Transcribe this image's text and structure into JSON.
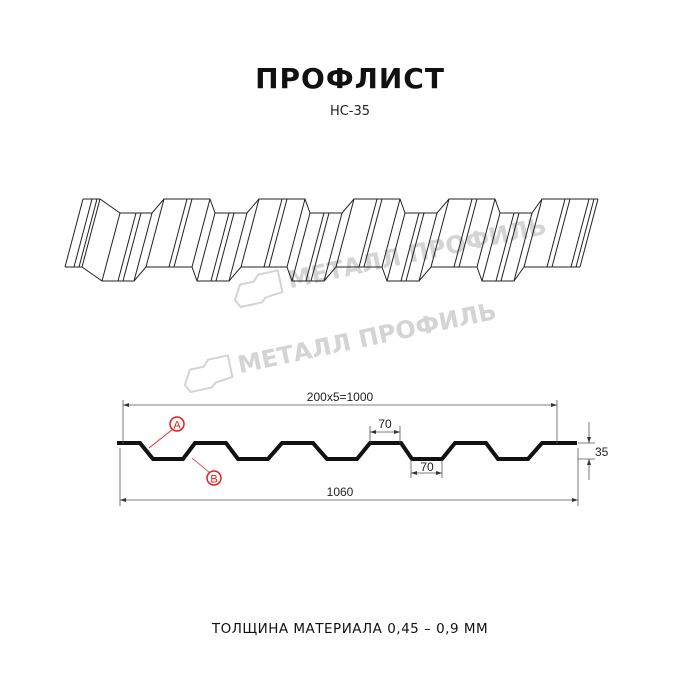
{
  "header": {
    "title": "ПРОФЛИСТ",
    "subtitle": "НС-35"
  },
  "watermark": {
    "text": "МЕТАЛЛ ПРОФИЛЬ",
    "color": "#d4d4d4"
  },
  "profile": {
    "dimensions": {
      "pitch_total": "200х5=1000",
      "top_flat": "70",
      "bottom_flat": "70",
      "height": "35",
      "full_width": "1060"
    },
    "markers": [
      {
        "label": "A"
      },
      {
        "label": "B"
      }
    ],
    "marker_color": "#e02020"
  },
  "footer": {
    "text": "ТОЛЩИНА МАТЕРИАЛА 0,45 – 0,9 ММ"
  }
}
